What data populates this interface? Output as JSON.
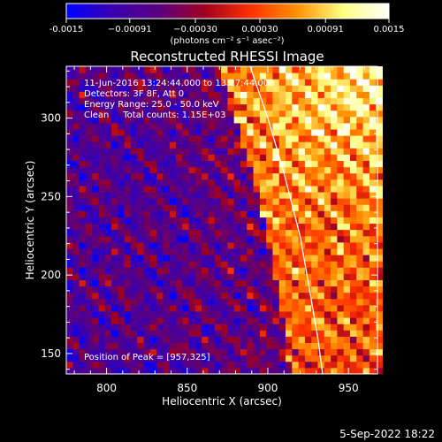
{
  "chart_data": {
    "type": "heatmap",
    "title": "Reconstructed RHESSI Image",
    "xlabel": "Heliocentric X (arcsec)",
    "ylabel": "Heliocentric Y (arcsec)",
    "xlim": [
      775,
      968
    ],
    "ylim": [
      137,
      333
    ],
    "x_ticks": [
      800,
      850,
      900,
      950
    ],
    "y_ticks": [
      150,
      200,
      250,
      300
    ],
    "x_tick_labels": [
      "800",
      "850",
      "900",
      "950"
    ],
    "y_tick_labels": [
      "150",
      "200",
      "250",
      "300"
    ],
    "colorbar": {
      "min": -0.0015,
      "max": 0.0015,
      "tick_values": [
        -0.0015,
        -0.00091,
        -0.0003,
        0.0003,
        0.00091,
        0.0015
      ],
      "tick_labels": [
        "-0.0015",
        "−0.00091",
        "−0.00030",
        "0.00030",
        "0.00091",
        "0.0015"
      ],
      "units": "(photons cm⁻² s⁻¹ asec⁻²)",
      "colormap": [
        "#0000ff",
        "#3a00b0",
        "#5a0080",
        "#a00020",
        "#ff3000",
        "#ff9000",
        "#ffff80",
        "#ffffff"
      ]
    },
    "annotations": [
      "11-Jun-2016 13:24:44.000 to 13:27:44.000",
      "Detectors: 3F 8F, Att 0",
      "Energy Range: 25.0 - 50.0 keV",
      "Clean     Total counts: 1.15E+03"
    ],
    "peak_label": "Position of Peak = [957,325]",
    "peak": {
      "x": 957,
      "y": 325
    },
    "limb_curve": {
      "x": [
        889,
        900,
        910,
        920,
        926,
        931,
        934
      ],
      "y": [
        333,
        300,
        265,
        225,
        190,
        160,
        137
      ]
    },
    "grid": false,
    "grid_step_arcsec": 4
  },
  "footer": {
    "date": "5-Sep-2022 18:22"
  }
}
